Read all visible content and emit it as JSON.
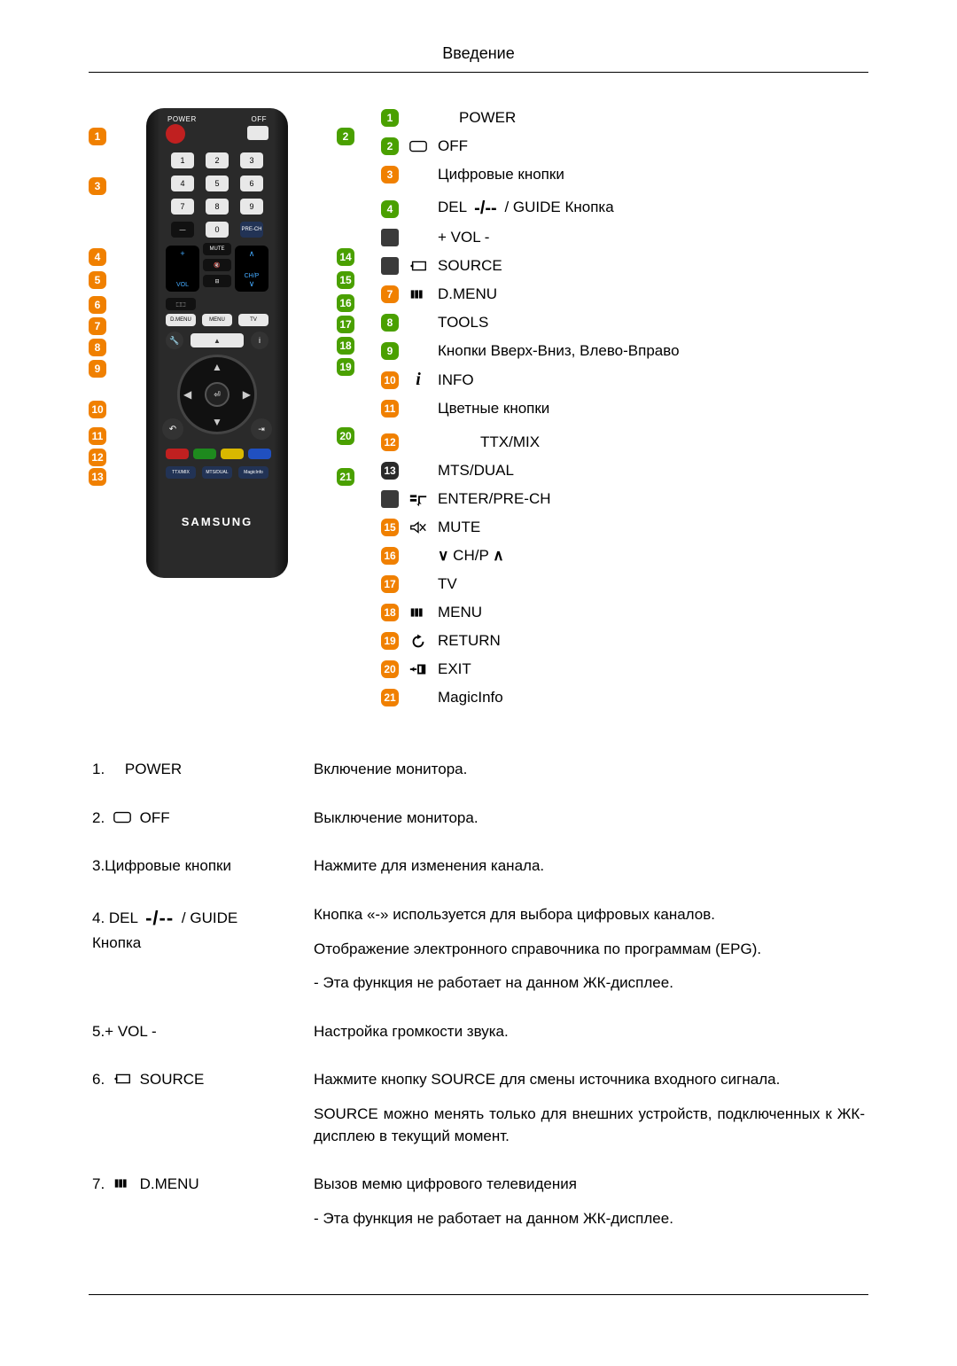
{
  "header": {
    "title": "Введение"
  },
  "remote": {
    "brand": "SAMSUNG"
  },
  "legend": [
    {
      "n": 1,
      "cls": "g",
      "icon": "",
      "text": "POWER",
      "gapBefore": false,
      "extraLeftPad": 24
    },
    {
      "n": 2,
      "cls": "g",
      "icon": "offrect",
      "text": "OFF",
      "gapBefore": false
    },
    {
      "n": 3,
      "cls": "o",
      "icon": "",
      "text": "Цифровые кнопки",
      "gapBefore": false
    },
    {
      "n": 4,
      "cls": "g",
      "icon": "",
      "text": "DEL ‑/‑‑ / GUIDE Кнопка",
      "gapBefore": true,
      "delIcon": true
    },
    {
      "n": 0,
      "cls": "sq",
      "icon": "",
      "text": "+ VOL -",
      "gapBefore": false
    },
    {
      "n": 0,
      "cls": "sq",
      "icon": "source",
      "text": "SOURCE",
      "gapBefore": false
    },
    {
      "n": 7,
      "cls": "o",
      "icon": "dmenu",
      "text": "D.MENU",
      "gapBefore": false
    },
    {
      "n": 8,
      "cls": "g",
      "icon": "",
      "text": "TOOLS",
      "gapBefore": false
    },
    {
      "n": 9,
      "cls": "g",
      "icon": "",
      "text": "Кнопки Вверх-Вниз, Влево-Вправо",
      "gapBefore": false
    },
    {
      "n": 10,
      "cls": "o",
      "icon": "info",
      "text": "INFO",
      "gapBefore": false
    },
    {
      "n": 11,
      "cls": "o",
      "icon": "",
      "text": "Цветные кнопки",
      "gapBefore": false
    },
    {
      "n": 12,
      "cls": "o",
      "icon": "",
      "text": "TTX/MIX",
      "gapBefore": true,
      "extraLeftPad": 48
    },
    {
      "n": 13,
      "cls": "dk",
      "icon": "",
      "text": "MTS/DUAL",
      "gapBefore": false
    },
    {
      "n": 0,
      "cls": "sq",
      "icon": "enter",
      "text": "ENTER/PRE-CH",
      "gapBefore": false
    },
    {
      "n": 15,
      "cls": "o",
      "icon": "mute",
      "text": "MUTE",
      "gapBefore": false
    },
    {
      "n": 16,
      "cls": "o",
      "icon": "chp",
      "text": "CH/P",
      "gapBefore": false
    },
    {
      "n": 17,
      "cls": "o",
      "icon": "",
      "text": "TV",
      "gapBefore": false
    },
    {
      "n": 18,
      "cls": "o",
      "icon": "dmenu",
      "text": "MENU",
      "gapBefore": false
    },
    {
      "n": 19,
      "cls": "o",
      "icon": "return",
      "text": "RETURN",
      "gapBefore": false
    },
    {
      "n": 20,
      "cls": "o",
      "icon": "exit",
      "text": "EXIT",
      "gapBefore": false
    },
    {
      "n": 21,
      "cls": "o",
      "icon": "",
      "text": "MagicInfo",
      "gapBefore": false
    }
  ],
  "desc": [
    {
      "leftNum": "1.",
      "leftIcon": "",
      "leftText": "POWER",
      "paras": [
        "Включение монитора."
      ],
      "extraLeftPad": 18
    },
    {
      "leftNum": "2.",
      "leftIcon": "offrect",
      "leftText": "OFF",
      "paras": [
        "Выключение монитора."
      ]
    },
    {
      "leftNum": "3.",
      "leftIcon": "",
      "leftText": "Цифровые кнопки",
      "noSpace": true,
      "paras": [
        "Нажмите для изменения канала."
      ]
    },
    {
      "leftNum": "4.",
      "leftIcon": "del",
      "leftText": "DEL",
      "afterIcon": true,
      "trailing": " / GUIDE",
      "secondLine": "Кнопка",
      "paras": [
        "Кнопка «-» используется для выбора цифровых каналов.",
        "Отображение электронного справочника по программам (EPG).",
        "- Эта функция не работает на данном ЖК-дисплее."
      ],
      "justify": true
    },
    {
      "leftNum": "5.",
      "leftIcon": "",
      "leftText": "+ VOL -",
      "noSpace": true,
      "paras": [
        "Настройка громкости звука."
      ]
    },
    {
      "leftNum": "6.",
      "leftIcon": "source",
      "leftText": "SOURCE",
      "paras": [
        "Нажмите кнопку SOURCE для смены источника входного сигнала.",
        "SOURCE можно менять только для внешних устройств, подключенных к ЖК-дисплею в текущий момент."
      ],
      "justify": true
    },
    {
      "leftNum": "7.",
      "leftIcon": "dmenu",
      "leftText": "D.MENU",
      "paras": [
        "Вызов мемю цифрового телевидения",
        "- Эта функция не работает на данном ЖК-дисплее."
      ]
    }
  ]
}
